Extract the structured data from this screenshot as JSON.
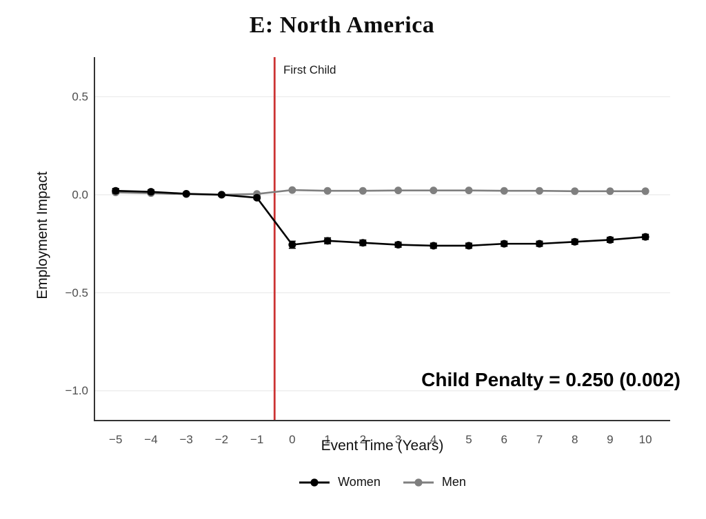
{
  "chart": {
    "title": "E: North America",
    "ylabel": "Employment Impact",
    "xlabel": "Event Time (Years)",
    "vline_label": "First Child",
    "annotation": "Child Penalty = 0.250 (0.002)"
  },
  "chart_data": {
    "type": "line",
    "title": "E: North America",
    "xlabel": "Event Time (Years)",
    "ylabel": "Employment Impact",
    "x": [
      -5,
      -4,
      -3,
      -2,
      -1,
      0,
      1,
      2,
      3,
      4,
      5,
      6,
      7,
      8,
      9,
      10
    ],
    "series": [
      {
        "name": "Women",
        "color": "#000000",
        "values": [
          0.02,
          0.015,
          0.005,
          0.0,
          -0.015,
          -0.255,
          -0.235,
          -0.245,
          -0.255,
          -0.26,
          -0.26,
          -0.25,
          -0.25,
          -0.24,
          -0.23,
          -0.215
        ],
        "errors": [
          0.012,
          0.01,
          0.008,
          0.008,
          0.008,
          0.018,
          0.015,
          0.014,
          0.013,
          0.013,
          0.013,
          0.013,
          0.013,
          0.013,
          0.013,
          0.013
        ]
      },
      {
        "name": "Men",
        "color": "#7f7f7f",
        "values": [
          0.012,
          0.008,
          0.003,
          0.0,
          0.004,
          0.024,
          0.02,
          0.02,
          0.022,
          0.022,
          0.022,
          0.02,
          0.02,
          0.018,
          0.018,
          0.018
        ],
        "errors": [
          0.004,
          0.004,
          0.004,
          0.004,
          0.004,
          0.004,
          0.004,
          0.004,
          0.004,
          0.004,
          0.004,
          0.004,
          0.004,
          0.004,
          0.004,
          0.004
        ]
      }
    ],
    "vline": {
      "x": -0.5,
      "label": "First Child",
      "color": "#CC3333"
    },
    "annotation": {
      "text": "Child Penalty = 0.250 (0.002)",
      "estimate": 0.25,
      "se": 0.002
    },
    "xlim": [
      -5.6,
      10.7
    ],
    "ylim": [
      -1.152,
      0.702
    ],
    "yticks": [
      0.5,
      0.0,
      -0.5,
      -1.0
    ],
    "ytick_labels": [
      "0.5",
      "0.0",
      "−0.5",
      "−1.0"
    ],
    "xticks": [
      -5,
      -4,
      -3,
      -2,
      -1,
      0,
      1,
      2,
      3,
      4,
      5,
      6,
      7,
      8,
      9,
      10
    ],
    "xtick_labels": [
      "−5",
      "−4",
      "−3",
      "−2",
      "−1",
      "0",
      "1",
      "2",
      "3",
      "4",
      "5",
      "6",
      "7",
      "8",
      "9",
      "10"
    ],
    "grid": "horizontal-major",
    "legend_position": "bottom"
  },
  "colors": {
    "women": "#000000",
    "men": "#7f7f7f",
    "event_line": "#CC3333",
    "gridline": "#ececec",
    "axis_line": "#333333",
    "tick_text": "#4d4d4d",
    "text": "#111111",
    "background": "#ffffff"
  }
}
